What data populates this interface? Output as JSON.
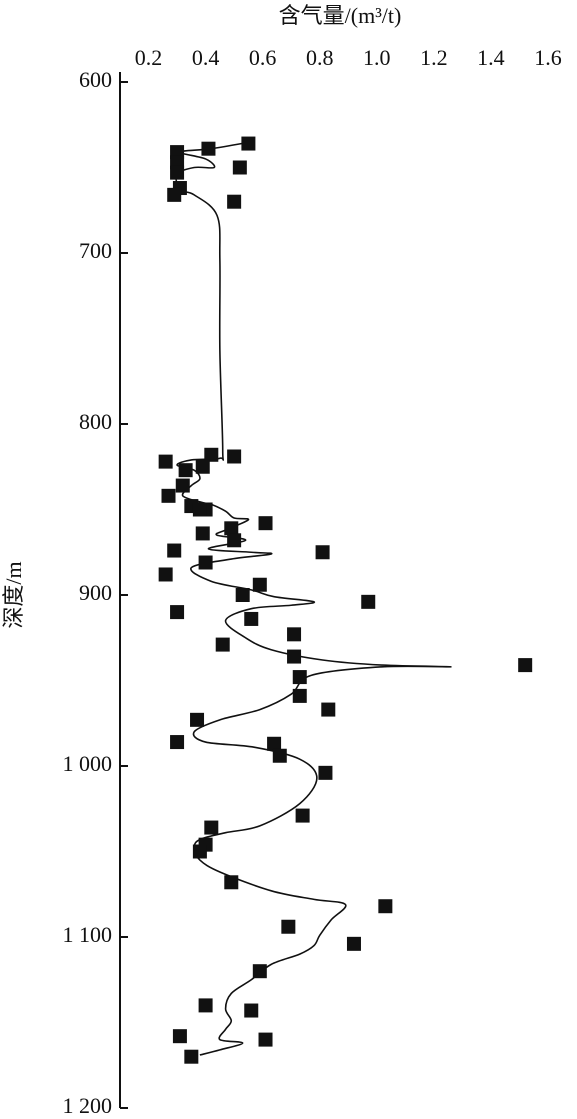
{
  "chart_data": {
    "type": "scatter",
    "x_label": "含气量/(m³/t)",
    "y_label": "深度/m",
    "xlim": [
      0.1,
      1.6
    ],
    "xticks": [
      0.2,
      0.4,
      0.6,
      0.8,
      {
        "value": 1,
        "label": "1.0"
      },
      1.2,
      1.4,
      1.6
    ],
    "ylim": [
      600,
      1200
    ],
    "yticks": [
      600,
      700,
      800,
      900,
      {
        "value": 1000,
        "label": "1 000"
      },
      {
        "value": 1100,
        "label": "1 100"
      },
      {
        "value": 1200,
        "label": "1 200"
      }
    ],
    "y_inverted": true,
    "color": "#111111",
    "points": {
      "x": [
        0.55,
        0.41,
        0.3,
        0.3,
        0.52,
        0.3,
        0.31,
        0.29,
        0.5,
        0.42,
        0.5,
        0.26,
        0.33,
        0.39,
        0.32,
        0.27,
        0.35,
        0.4,
        0.38,
        0.61,
        0.49,
        0.39,
        0.5,
        0.29,
        0.81,
        0.4,
        0.26,
        0.59,
        0.53,
        0.97,
        0.3,
        0.56,
        0.71,
        0.46,
        0.71,
        1.52,
        0.73,
        0.73,
        0.83,
        0.37,
        0.3,
        0.64,
        0.66,
        0.82,
        0.74,
        0.42,
        0.4,
        0.38,
        0.49,
        1.03,
        0.69,
        0.92,
        0.59,
        0.4,
        0.56,
        0.31,
        0.61,
        0.35
      ],
      "y": [
        636,
        639,
        641,
        647,
        650,
        653,
        662,
        666,
        670,
        818,
        819,
        822,
        827,
        825,
        836,
        842,
        848,
        850,
        850,
        858,
        861,
        864,
        868,
        874,
        875,
        881,
        888,
        894,
        900,
        904,
        910,
        914,
        923,
        929,
        936,
        941,
        948,
        959,
        967,
        973,
        986,
        987,
        994,
        1004,
        1029,
        1036,
        1046,
        1050,
        1068,
        1082,
        1094,
        1104,
        1120,
        1140,
        1143,
        1158,
        1160,
        1170
      ]
    },
    "curve": {
      "x": [
        0.56,
        0.42,
        0.31,
        0.4,
        0.43,
        0.36,
        0.3,
        0.31,
        0.36,
        0.44,
        0.45,
        0.45,
        0.46,
        0.45,
        0.35,
        0.3,
        0.36,
        0.38,
        0.35,
        0.32,
        0.39,
        0.42,
        0.47,
        0.5,
        0.55,
        0.47,
        0.44,
        0.54,
        0.41,
        0.56,
        0.63,
        0.49,
        0.35,
        0.42,
        0.56,
        0.64,
        0.78,
        0.7,
        0.56,
        0.47,
        0.54,
        0.63,
        0.81,
        1.02,
        1.26,
        1.02,
        0.77,
        0.7,
        0.59,
        0.45,
        0.36,
        0.4,
        0.57,
        0.73,
        0.79,
        0.73,
        0.59,
        0.47,
        0.38,
        0.36,
        0.38,
        0.45,
        0.63,
        0.78,
        0.89,
        0.84,
        0.8,
        0.78,
        0.73,
        0.63,
        0.56,
        0.49,
        0.47,
        0.49,
        0.47,
        0.45,
        0.53,
        0.45,
        0.38
      ],
      "y": [
        635,
        639,
        641,
        645,
        650,
        650,
        654,
        663,
        666,
        678,
        704,
        757,
        815,
        820,
        821,
        824,
        827,
        832,
        836,
        842,
        846,
        847,
        851,
        855,
        856,
        862,
        865,
        868,
        873,
        875,
        876,
        879,
        884,
        892,
        897,
        901,
        904,
        906,
        908,
        915,
        925,
        932,
        938,
        941,
        942,
        942,
        947,
        958,
        967,
        973,
        980,
        986,
        989,
        996,
        1007,
        1022,
        1035,
        1039,
        1043,
        1048,
        1055,
        1062,
        1073,
        1078,
        1081,
        1090,
        1099,
        1105,
        1110,
        1116,
        1125,
        1133,
        1142,
        1149,
        1154,
        1160,
        1162,
        1166,
        1169
      ]
    }
  }
}
